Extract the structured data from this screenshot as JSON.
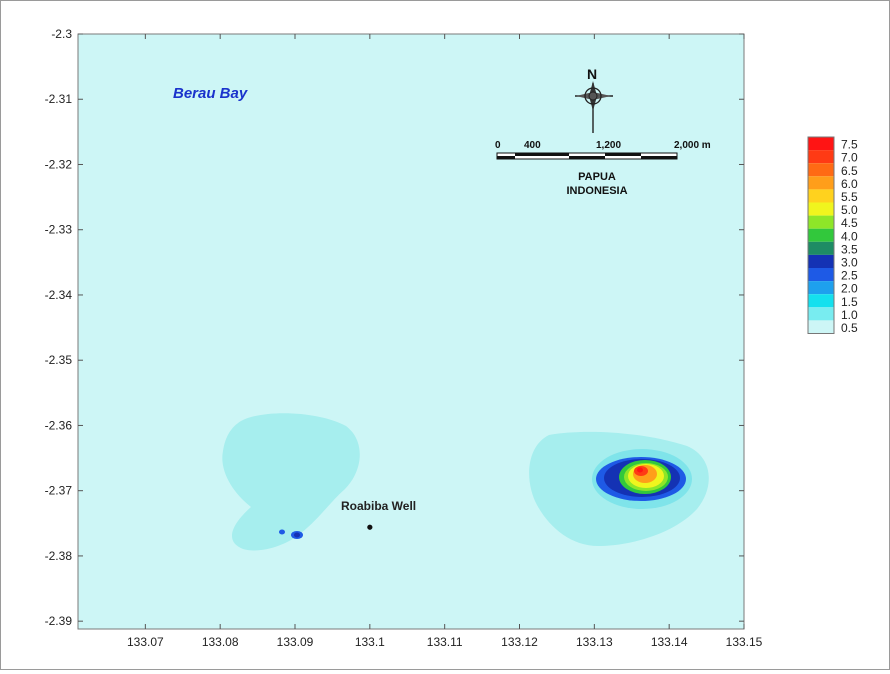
{
  "map": {
    "title": "Berau Bay",
    "x_axis": {
      "ticks": [
        "133.07",
        "133.08",
        "133.09",
        "133.1",
        "133.11",
        "133.12",
        "133.13",
        "133.14",
        "133.15"
      ],
      "values": [
        133.07,
        133.08,
        133.09,
        133.1,
        133.11,
        133.12,
        133.13,
        133.14,
        133.15
      ],
      "range": [
        133.061,
        133.15
      ]
    },
    "y_axis": {
      "ticks": [
        "-2.3",
        "-2.31",
        "-2.32",
        "-2.33",
        "-2.34",
        "-2.35",
        "-2.36",
        "-2.37",
        "-2.38",
        "-2.39"
      ],
      "values": [
        -2.3,
        -2.31,
        -2.32,
        -2.33,
        -2.34,
        -2.35,
        -2.36,
        -2.37,
        -2.38,
        -2.39
      ],
      "range": [
        -2.3,
        -2.3912
      ]
    },
    "compass": {
      "label": "N",
      "icon": "compass-rose-icon"
    },
    "scale_bar": {
      "labels": [
        "0",
        "400",
        "1,200",
        "2,000 m"
      ]
    },
    "region": {
      "line1": "PAPUA",
      "line2": "INDONESIA"
    },
    "well": {
      "label": "Roabiba Well",
      "lon": 133.1,
      "lat": -2.3756
    },
    "colors": {
      "water": "#cdf6f6",
      "plume_low": "#a6eeee",
      "plume_mid": "#7fe4ea"
    }
  },
  "legend": {
    "items": [
      {
        "value": "7.5",
        "color": "#ff1414"
      },
      {
        "value": "7.0",
        "color": "#ff3a14"
      },
      {
        "value": "6.5",
        "color": "#ff6a14"
      },
      {
        "value": "6.0",
        "color": "#ff9e1a"
      },
      {
        "value": "5.5",
        "color": "#ffd21e"
      },
      {
        "value": "5.0",
        "color": "#f0f51e"
      },
      {
        "value": "4.5",
        "color": "#8ee628"
      },
      {
        "value": "4.0",
        "color": "#32c83c"
      },
      {
        "value": "3.5",
        "color": "#1e8c64"
      },
      {
        "value": "3.0",
        "color": "#1432b4"
      },
      {
        "value": "2.5",
        "color": "#1e5ae6"
      },
      {
        "value": "2.0",
        "color": "#1ea0ee"
      },
      {
        "value": "1.5",
        "color": "#14e0ee"
      },
      {
        "value": "1.0",
        "color": "#78ecf0"
      },
      {
        "value": "0.5",
        "color": "#cdf6f6"
      }
    ]
  }
}
